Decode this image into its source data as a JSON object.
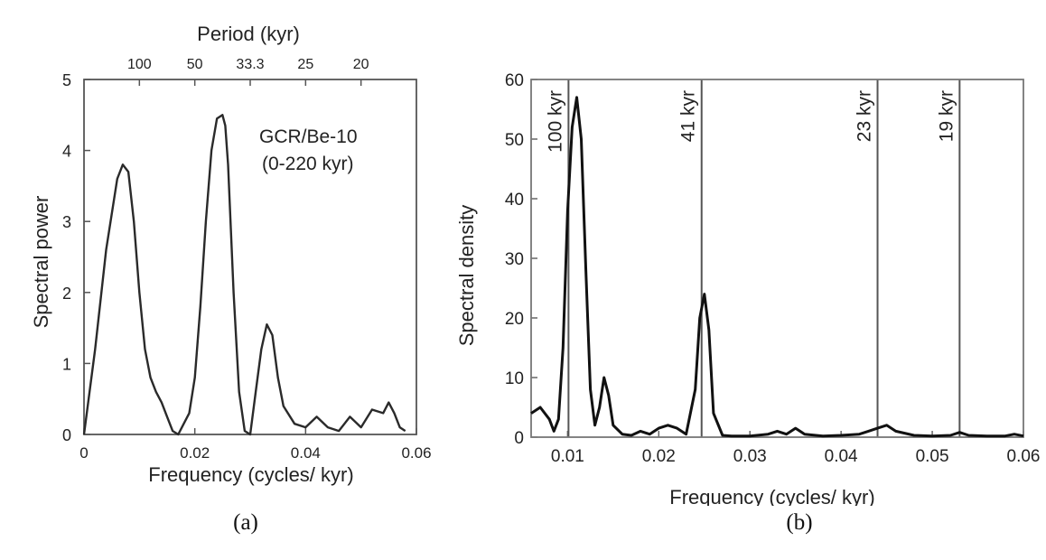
{
  "chart_data": [
    {
      "id": "a",
      "type": "line",
      "xlabel": "Frequency (cycles/ kyr)",
      "ylabel": "Spectral power",
      "top_axis_label": "Period (kyr)",
      "top_ticks": [
        "100",
        "50",
        "33.3",
        "25",
        "20"
      ],
      "top_tick_freqs": [
        0.01,
        0.02,
        0.03,
        0.04,
        0.05
      ],
      "annotation": [
        "GCR/Be-10",
        "(0-220 kyr)"
      ],
      "xlim": [
        0,
        0.06
      ],
      "ylim": [
        0,
        5
      ],
      "xticks": [
        0,
        0.02,
        0.04,
        0.06
      ],
      "xtick_labels": [
        "0",
        "0.02",
        "0.04",
        "0.06"
      ],
      "yticks": [
        0,
        1,
        2,
        3,
        4,
        5
      ],
      "ytick_labels": [
        "0",
        "1",
        "2",
        "3",
        "4",
        "5"
      ],
      "grid": false,
      "series": [
        {
          "x": [
            0,
            0.002,
            0.004,
            0.006,
            0.007,
            0.008,
            0.009,
            0.01,
            0.011,
            0.012,
            0.013,
            0.014,
            0.015,
            0.016,
            0.017,
            0.018,
            0.019,
            0.02,
            0.021,
            0.022,
            0.023,
            0.024,
            0.025,
            0.0255,
            0.026,
            0.027,
            0.028,
            0.029,
            0.03,
            0.031,
            0.032,
            0.033,
            0.034,
            0.035,
            0.036,
            0.038,
            0.04,
            0.042,
            0.044,
            0.046,
            0.048,
            0.05,
            0.052,
            0.054,
            0.055,
            0.056,
            0.057,
            0.058
          ],
          "y": [
            0,
            1.2,
            2.6,
            3.6,
            3.8,
            3.7,
            3.0,
            2.0,
            1.2,
            0.8,
            0.6,
            0.45,
            0.25,
            0.05,
            0.0,
            0.15,
            0.3,
            0.8,
            1.8,
            3.0,
            4.0,
            4.45,
            4.5,
            4.35,
            3.8,
            2.0,
            0.6,
            0.05,
            0.0,
            0.6,
            1.2,
            1.55,
            1.4,
            0.8,
            0.4,
            0.15,
            0.1,
            0.25,
            0.1,
            0.05,
            0.25,
            0.1,
            0.35,
            0.3,
            0.45,
            0.3,
            0.1,
            0.05
          ]
        }
      ]
    },
    {
      "id": "b",
      "type": "line",
      "xlabel": "Frequency (cycles/ kyr)",
      "ylabel": "Spectral density",
      "xlim": [
        0.006,
        0.06
      ],
      "ylim": [
        0,
        60
      ],
      "xticks": [
        0.01,
        0.02,
        0.03,
        0.04,
        0.05,
        0.06
      ],
      "xtick_labels": [
        "0.01",
        "0.02",
        "0.03",
        "0.04",
        "0.05",
        "0.06"
      ],
      "yticks": [
        0,
        10,
        20,
        30,
        40,
        50,
        60
      ],
      "ytick_labels": [
        "0",
        "10",
        "20",
        "30",
        "40",
        "50",
        "60"
      ],
      "grid": false,
      "reference_lines": [
        {
          "x": 0.0101,
          "label": "100 kyr"
        },
        {
          "x": 0.0247,
          "label": "41 kyr"
        },
        {
          "x": 0.044,
          "label": "23 kyr"
        },
        {
          "x": 0.053,
          "label": "19 kyr"
        }
      ],
      "series": [
        {
          "x": [
            0.006,
            0.007,
            0.008,
            0.0085,
            0.009,
            0.0095,
            0.01,
            0.0105,
            0.011,
            0.0115,
            0.012,
            0.0125,
            0.013,
            0.0135,
            0.014,
            0.0145,
            0.015,
            0.016,
            0.017,
            0.018,
            0.019,
            0.02,
            0.021,
            0.022,
            0.023,
            0.024,
            0.0245,
            0.025,
            0.0255,
            0.026,
            0.027,
            0.028,
            0.03,
            0.032,
            0.033,
            0.034,
            0.035,
            0.036,
            0.038,
            0.04,
            0.042,
            0.043,
            0.044,
            0.045,
            0.046,
            0.048,
            0.05,
            0.052,
            0.053,
            0.054,
            0.056,
            0.058,
            0.059,
            0.06
          ],
          "y": [
            4,
            5,
            3,
            1,
            3,
            15,
            38,
            52,
            57,
            50,
            28,
            8,
            2,
            5,
            10,
            7,
            2,
            0.5,
            0.3,
            1,
            0.5,
            1.5,
            2,
            1.5,
            0.5,
            8,
            20,
            24,
            18,
            4,
            0.3,
            0.2,
            0.2,
            0.5,
            1,
            0.5,
            1.5,
            0.5,
            0.2,
            0.3,
            0.5,
            1,
            1.5,
            2,
            1,
            0.3,
            0.2,
            0.3,
            0.8,
            0.3,
            0.2,
            0.2,
            0.5,
            0.2
          ]
        }
      ]
    }
  ],
  "captions": {
    "a": "(a)",
    "b": "(b)"
  }
}
